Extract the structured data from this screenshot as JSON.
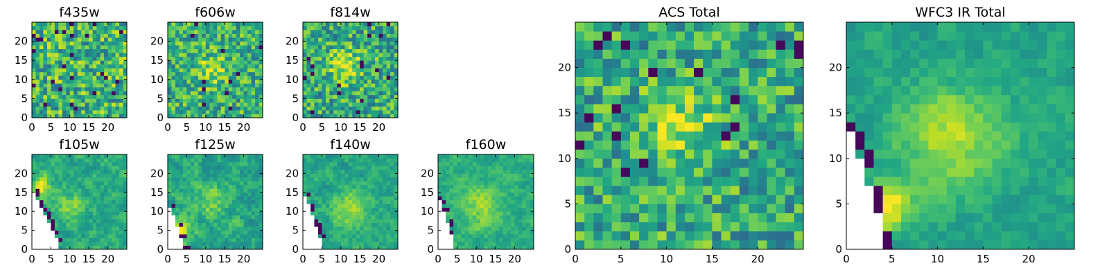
{
  "figure": {
    "background": "#ffffff",
    "colormap": "viridis",
    "nan_color": "#ffffff"
  },
  "chart_data": [
    {
      "id": "f435w",
      "type": "heatmap",
      "title": "f435w",
      "grid": [
        25,
        25
      ],
      "xticks": [
        0,
        5,
        10,
        15,
        20
      ],
      "yticks": [
        0,
        5,
        10,
        15,
        20
      ],
      "pattern": "noise",
      "seed": 11,
      "mean": 0.66,
      "spread": 0.3,
      "hot_spots": [],
      "masked_region": null
    },
    {
      "id": "f606w",
      "type": "heatmap",
      "title": "f606w",
      "grid": [
        25,
        25
      ],
      "xticks": [
        0,
        5,
        10,
        15,
        20
      ],
      "yticks": [
        0,
        5,
        10,
        15,
        20
      ],
      "pattern": "noise",
      "seed": 23,
      "mean": 0.64,
      "spread": 0.26,
      "hot_spots": [
        {
          "cx": 11,
          "cy": 12,
          "r": 3,
          "amp": 0.25
        }
      ],
      "masked_region": null
    },
    {
      "id": "f814w",
      "type": "heatmap",
      "title": "f814w",
      "grid": [
        25,
        25
      ],
      "xticks": [
        0,
        5,
        10,
        15,
        20
      ],
      "yticks": [
        0,
        5,
        10,
        15,
        20
      ],
      "pattern": "noise",
      "seed": 37,
      "mean": 0.62,
      "spread": 0.27,
      "hot_spots": [
        {
          "cx": 11,
          "cy": 13,
          "r": 3,
          "amp": 0.3
        }
      ],
      "masked_region": null
    },
    {
      "id": "f105w",
      "type": "heatmap",
      "title": "f105w",
      "grid": [
        25,
        25
      ],
      "xticks": [
        0,
        5,
        10,
        15,
        20
      ],
      "yticks": [
        0,
        5,
        10,
        15,
        20
      ],
      "pattern": "smooth",
      "seed": 41,
      "mean": 0.6,
      "spread": 0.2,
      "hot_spots": [
        {
          "cx": 2,
          "cy": 16,
          "r": 2,
          "amp": 0.35
        },
        {
          "cx": 10,
          "cy": 11,
          "r": 3,
          "amp": 0.2
        }
      ],
      "masked_region": {
        "x0": 0,
        "y0": 0,
        "x1": 7,
        "y1": 15
      }
    },
    {
      "id": "f125w",
      "type": "heatmap",
      "title": "f125w",
      "grid": [
        25,
        25
      ],
      "xticks": [
        0,
        5,
        10,
        15,
        20
      ],
      "yticks": [
        0,
        5,
        10,
        15,
        20
      ],
      "pattern": "smooth",
      "seed": 53,
      "mean": 0.6,
      "spread": 0.22,
      "hot_spots": [
        {
          "cx": 3,
          "cy": 4,
          "r": 2,
          "amp": 0.35
        },
        {
          "cx": 11,
          "cy": 12,
          "r": 3,
          "amp": 0.18
        }
      ],
      "masked_region": {
        "x0": 0,
        "y0": 0,
        "x1": 4,
        "y1": 11
      }
    },
    {
      "id": "f140w",
      "type": "heatmap",
      "title": "f140w",
      "grid": [
        25,
        25
      ],
      "xticks": [
        0,
        5,
        10,
        15,
        20
      ],
      "yticks": [
        0,
        5,
        10,
        15,
        20
      ],
      "pattern": "smooth",
      "seed": 61,
      "mean": 0.6,
      "spread": 0.18,
      "hot_spots": [
        {
          "cx": 12,
          "cy": 10,
          "r": 3,
          "amp": 0.3
        }
      ],
      "masked_region": {
        "x0": 0,
        "y0": 0,
        "x1": 5,
        "y1": 14
      }
    },
    {
      "id": "f160w",
      "type": "heatmap",
      "title": "f160w",
      "grid": [
        25,
        25
      ],
      "xticks": [
        0,
        5,
        10,
        15,
        20
      ],
      "yticks": [
        0,
        5,
        10,
        15,
        20
      ],
      "pattern": "smooth",
      "seed": 71,
      "mean": 0.62,
      "spread": 0.16,
      "hot_spots": [
        {
          "cx": 11,
          "cy": 11,
          "r": 4,
          "amp": 0.22
        }
      ],
      "masked_region": {
        "x0": 0,
        "y0": 0,
        "x1": 4,
        "y1": 13
      }
    },
    {
      "id": "acs_total",
      "type": "heatmap",
      "title": "ACS Total",
      "grid": [
        25,
        25
      ],
      "xticks": [
        0,
        5,
        10,
        15,
        20
      ],
      "yticks": [
        0,
        5,
        10,
        15,
        20
      ],
      "pattern": "noise",
      "seed": 83,
      "mean": 0.62,
      "spread": 0.26,
      "hot_spots": [
        {
          "cx": 11,
          "cy": 13,
          "r": 3,
          "amp": 0.28
        }
      ],
      "masked_region": null
    },
    {
      "id": "wfc3_ir_total",
      "type": "heatmap",
      "title": "WFC3 IR Total",
      "grid": [
        25,
        25
      ],
      "xticks": [
        0,
        5,
        10,
        15,
        20
      ],
      "yticks": [
        0,
        5,
        10,
        15,
        20
      ],
      "pattern": "smooth",
      "seed": 97,
      "mean": 0.58,
      "spread": 0.14,
      "hot_spots": [
        {
          "cx": 11,
          "cy": 12,
          "r": 4,
          "amp": 0.3
        },
        {
          "cx": 4,
          "cy": 4,
          "r": 2,
          "amp": 0.4
        }
      ],
      "masked_region": {
        "x0": 0,
        "y0": 0,
        "x1": 4,
        "y1": 13
      }
    }
  ]
}
